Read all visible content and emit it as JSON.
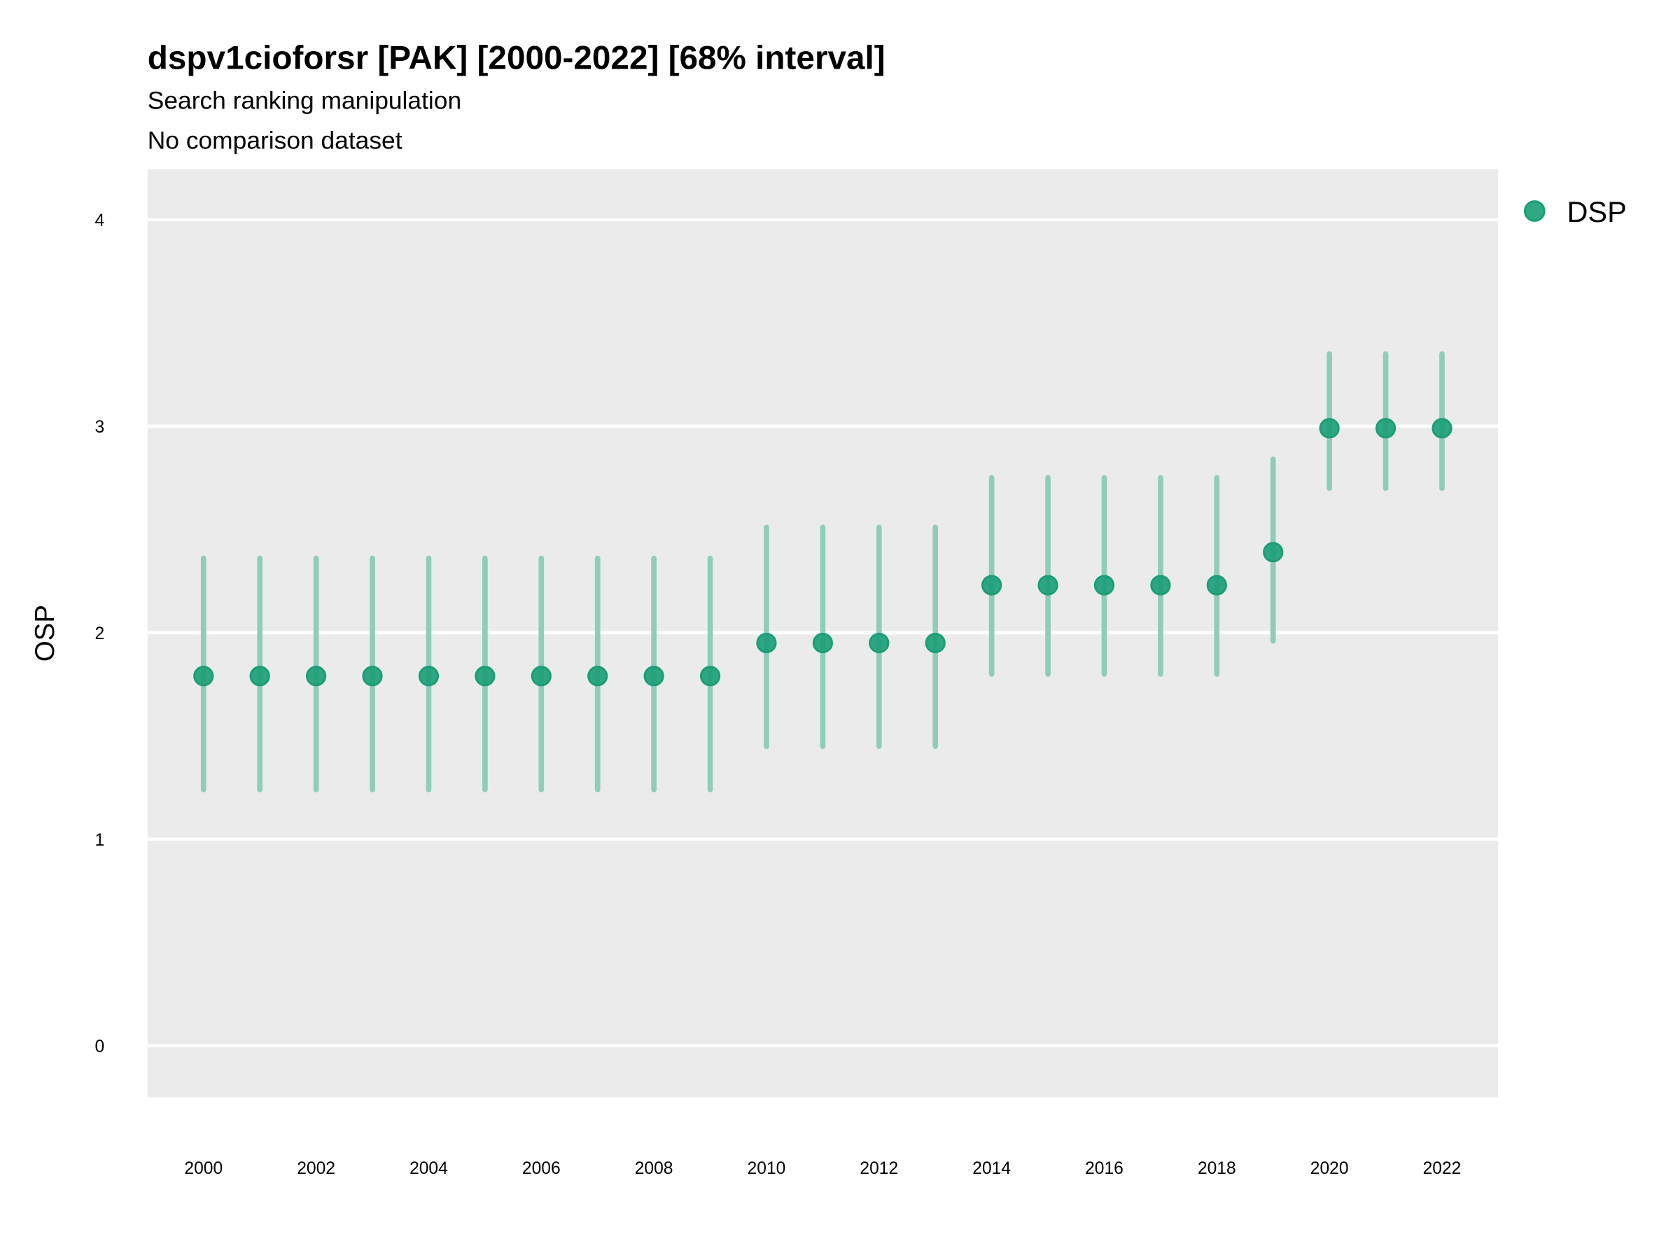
{
  "chart_data": {
    "type": "scatter",
    "title": "dspv1cioforsr [PAK] [2000-2022] [68% interval]",
    "subtitle": "Search ranking manipulation",
    "caption_line": "No comparison dataset",
    "xlabel": "",
    "ylabel": "OSP",
    "ylim": [
      -0.25,
      4.25
    ],
    "xlim": [
      1999,
      2023
    ],
    "grid": true,
    "yticks": [
      0,
      1,
      2,
      3,
      4
    ],
    "xticks": [
      2000,
      2002,
      2004,
      2006,
      2008,
      2010,
      2012,
      2014,
      2016,
      2018,
      2020,
      2022
    ],
    "legend": {
      "position": "right",
      "entries": [
        "DSP"
      ]
    },
    "colors": {
      "point": "#1b9e77",
      "interval": "#8fcdbb",
      "panel": "#ebebeb",
      "grid": "#ffffff"
    },
    "series": [
      {
        "name": "DSP",
        "x": [
          2000,
          2001,
          2002,
          2003,
          2004,
          2005,
          2006,
          2007,
          2008,
          2009,
          2010,
          2011,
          2012,
          2013,
          2014,
          2015,
          2016,
          2017,
          2018,
          2019,
          2020,
          2021,
          2022
        ],
        "y": [
          1.79,
          1.79,
          1.79,
          1.79,
          1.79,
          1.79,
          1.79,
          1.79,
          1.79,
          1.79,
          1.95,
          1.95,
          1.95,
          1.95,
          2.23,
          2.23,
          2.23,
          2.23,
          2.23,
          2.39,
          2.99,
          2.99,
          2.99
        ],
        "lower": [
          1.24,
          1.24,
          1.24,
          1.24,
          1.24,
          1.24,
          1.24,
          1.24,
          1.24,
          1.24,
          1.45,
          1.45,
          1.45,
          1.45,
          1.8,
          1.8,
          1.8,
          1.8,
          1.8,
          1.96,
          2.7,
          2.7,
          2.7
        ],
        "upper": [
          2.36,
          2.36,
          2.36,
          2.36,
          2.36,
          2.36,
          2.36,
          2.36,
          2.36,
          2.36,
          2.51,
          2.51,
          2.51,
          2.51,
          2.75,
          2.75,
          2.75,
          2.75,
          2.75,
          2.84,
          3.35,
          3.35,
          3.35
        ]
      }
    ]
  }
}
